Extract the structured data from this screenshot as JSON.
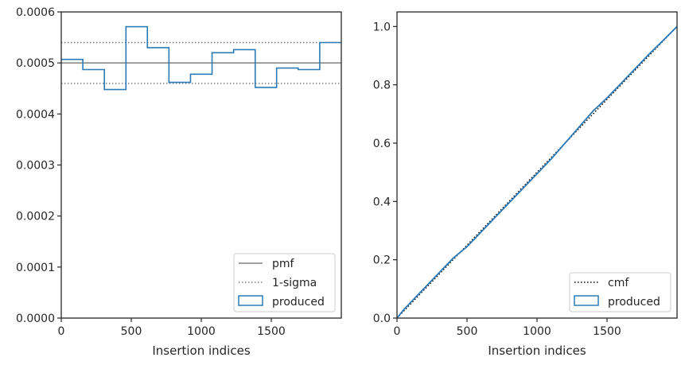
{
  "chart_data": [
    {
      "type": "step",
      "xlabel": "Insertion indices",
      "ylabel": "",
      "xlim": [
        0,
        2000
      ],
      "ylim": [
        0,
        0.0006
      ],
      "xticks": [
        0,
        500,
        1000,
        1500
      ],
      "yticks": [
        0.0,
        0.0001,
        0.0002,
        0.0003,
        0.0004,
        0.0005,
        0.0006
      ],
      "ytick_labels": [
        "0.0000",
        "0.0001",
        "0.0002",
        "0.0003",
        "0.0004",
        "0.0005",
        "0.0006"
      ],
      "grid": false,
      "legend_position": "lower-right",
      "series": [
        {
          "name": "pmf",
          "style": "solid-line",
          "color": "#808080",
          "y": 0.0005
        },
        {
          "name": "1-sigma",
          "style": "dotted-line",
          "color": "#808080",
          "y": [
            0.00046,
            0.00054
          ]
        },
        {
          "name": "produced",
          "style": "step-histogram",
          "color": "#2c7bb6",
          "bin_edges": [
            0,
            154,
            308,
            462,
            615,
            769,
            923,
            1077,
            1231,
            1385,
            1538,
            1692,
            1846,
            2000
          ],
          "values": [
            0.000507,
            0.000487,
            0.000448,
            0.000571,
            0.00053,
            0.000462,
            0.000478,
            0.00052,
            0.000526,
            0.000452,
            0.00049,
            0.000487,
            0.00054
          ]
        }
      ]
    },
    {
      "type": "line",
      "xlabel": "Insertion indices",
      "ylabel": "",
      "xlim": [
        0,
        2000
      ],
      "ylim": [
        0,
        1.05
      ],
      "xticks": [
        0,
        500,
        1000,
        1500
      ],
      "yticks": [
        0.0,
        0.2,
        0.4,
        0.6,
        0.8,
        1.0
      ],
      "ytick_labels": [
        "0.0",
        "0.2",
        "0.4",
        "0.6",
        "0.8",
        "1.0"
      ],
      "grid": false,
      "legend_position": "lower-right",
      "series": [
        {
          "name": "cmf",
          "style": "dotted-line",
          "color": "#000000",
          "x": [
            0,
            2000
          ],
          "y": [
            0,
            1.0
          ]
        },
        {
          "name": "produced",
          "style": "step-line",
          "color": "#2c7bb6",
          "x": [
            0,
            50,
            100,
            200,
            300,
            400,
            500,
            600,
            700,
            800,
            900,
            1000,
            1100,
            1200,
            1300,
            1400,
            1500,
            1600,
            1700,
            1800,
            1900,
            2000
          ],
          "y": [
            0,
            0.03,
            0.055,
            0.105,
            0.155,
            0.205,
            0.245,
            0.295,
            0.345,
            0.395,
            0.445,
            0.495,
            0.545,
            0.6,
            0.655,
            0.71,
            0.755,
            0.805,
            0.855,
            0.905,
            0.952,
            1.0
          ]
        }
      ]
    }
  ]
}
